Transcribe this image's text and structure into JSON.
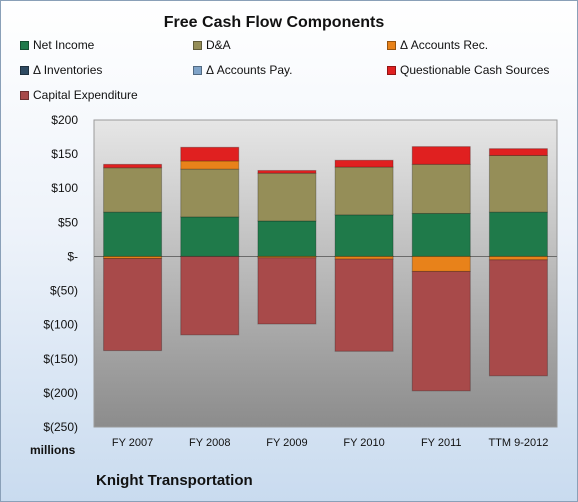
{
  "chart_data": {
    "type": "bar",
    "stacked": true,
    "title": "Free Cash Flow Components",
    "units_label": "millions",
    "footer": "Knight Transportation",
    "categories": [
      "FY 2007",
      "FY 2008",
      "FY 2009",
      "FY 2010",
      "FY 2011",
      "TTM 9-2012"
    ],
    "ylim": [
      -250,
      200
    ],
    "yticks": [
      200,
      150,
      100,
      50,
      0,
      -50,
      -100,
      -150,
      -200,
      -250
    ],
    "ytick_labels": [
      "$200",
      "$150",
      "$100",
      "$50",
      "$-",
      "$(50)",
      "$(100)",
      "$(150)",
      "$(200)",
      "$(250)"
    ],
    "grid": false,
    "legend_position": "top",
    "series": [
      {
        "name": "Net Income",
        "color": "#1f7a4a",
        "values": [
          65,
          58,
          52,
          61,
          63,
          65
        ]
      },
      {
        "name": "D&A",
        "color": "#958e58",
        "values": [
          65,
          70,
          70,
          70,
          72,
          83
        ]
      },
      {
        "name": "Δ Accounts Rec.",
        "color": "#e8821a",
        "values": [
          -3,
          12,
          -2,
          -4,
          -22,
          -5
        ]
      },
      {
        "name": "Δ Inventories",
        "color": "#2e4a62",
        "values": [
          0,
          0,
          0,
          0,
          0,
          0
        ]
      },
      {
        "name": "Δ Accounts Pay.",
        "color": "#7fa3c8",
        "values": [
          0,
          0,
          0,
          0,
          0,
          0
        ]
      },
      {
        "name": "Questionable Cash Sources",
        "color": "#e02020",
        "values": [
          5,
          20,
          4,
          10,
          26,
          10
        ]
      },
      {
        "name": "Capital Expenditure",
        "color": "#a84a4a",
        "values": [
          -135,
          -115,
          -97,
          -135,
          -175,
          -170
        ]
      }
    ]
  }
}
